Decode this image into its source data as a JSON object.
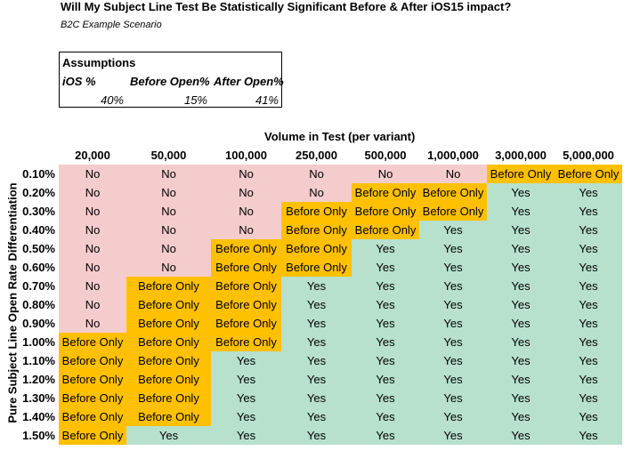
{
  "title": "Will My Subject Line Test Be Statistically Significant Before & After iOS15 impact?",
  "subtitle": "B2C Example Scenario",
  "assumptions": {
    "heading": "Assumptions",
    "ios_label": "iOS %",
    "before_label": "Before Open%",
    "after_label": "After Open%",
    "ios_value": "40%",
    "before_value": "15%",
    "after_value": "41%"
  },
  "table": {
    "volume_title": "Volume in Test (per variant)",
    "row_axis_label": "Pure Subject Line Open Rate Differentiation",
    "columns": [
      "20,000",
      "50,000",
      "100,000",
      "250,000",
      "500,000",
      "1,000,000",
      "3,000,000",
      "5,000,000"
    ],
    "rows": [
      {
        "label": "0.10%",
        "cells": [
          "No",
          "No",
          "No",
          "No",
          "No",
          "No",
          "Before Only",
          "Before Only"
        ]
      },
      {
        "label": "0.20%",
        "cells": [
          "No",
          "No",
          "No",
          "No",
          "Before Only",
          "Before Only",
          "Yes",
          "Yes"
        ]
      },
      {
        "label": "0.30%",
        "cells": [
          "No",
          "No",
          "No",
          "Before Only",
          "Before Only",
          "Before Only",
          "Yes",
          "Yes"
        ]
      },
      {
        "label": "0.40%",
        "cells": [
          "No",
          "No",
          "No",
          "Before Only",
          "Before Only",
          "Yes",
          "Yes",
          "Yes"
        ]
      },
      {
        "label": "0.50%",
        "cells": [
          "No",
          "No",
          "Before Only",
          "Before Only",
          "Yes",
          "Yes",
          "Yes",
          "Yes"
        ]
      },
      {
        "label": "0.60%",
        "cells": [
          "No",
          "No",
          "Before Only",
          "Before Only",
          "Yes",
          "Yes",
          "Yes",
          "Yes"
        ]
      },
      {
        "label": "0.70%",
        "cells": [
          "No",
          "Before Only",
          "Before Only",
          "Yes",
          "Yes",
          "Yes",
          "Yes",
          "Yes"
        ]
      },
      {
        "label": "0.80%",
        "cells": [
          "No",
          "Before Only",
          "Before Only",
          "Yes",
          "Yes",
          "Yes",
          "Yes",
          "Yes"
        ]
      },
      {
        "label": "0.90%",
        "cells": [
          "No",
          "Before Only",
          "Before Only",
          "Yes",
          "Yes",
          "Yes",
          "Yes",
          "Yes"
        ]
      },
      {
        "label": "1.00%",
        "cells": [
          "Before Only",
          "Before Only",
          "Before Only",
          "Yes",
          "Yes",
          "Yes",
          "Yes",
          "Yes"
        ]
      },
      {
        "label": "1.10%",
        "cells": [
          "Before Only",
          "Before Only",
          "Yes",
          "Yes",
          "Yes",
          "Yes",
          "Yes",
          "Yes"
        ]
      },
      {
        "label": "1.20%",
        "cells": [
          "Before Only",
          "Before Only",
          "Yes",
          "Yes",
          "Yes",
          "Yes",
          "Yes",
          "Yes"
        ]
      },
      {
        "label": "1.30%",
        "cells": [
          "Before Only",
          "Before Only",
          "Yes",
          "Yes",
          "Yes",
          "Yes",
          "Yes",
          "Yes"
        ]
      },
      {
        "label": "1.40%",
        "cells": [
          "Before Only",
          "Before Only",
          "Yes",
          "Yes",
          "Yes",
          "Yes",
          "Yes",
          "Yes"
        ]
      },
      {
        "label": "1.50%",
        "cells": [
          "Before Only",
          "Yes",
          "Yes",
          "Yes",
          "Yes",
          "Yes",
          "Yes",
          "Yes"
        ]
      }
    ]
  },
  "colors": {
    "no": "#f4cccc",
    "before_only": "#ffc000",
    "yes": "#b7e1cd"
  }
}
